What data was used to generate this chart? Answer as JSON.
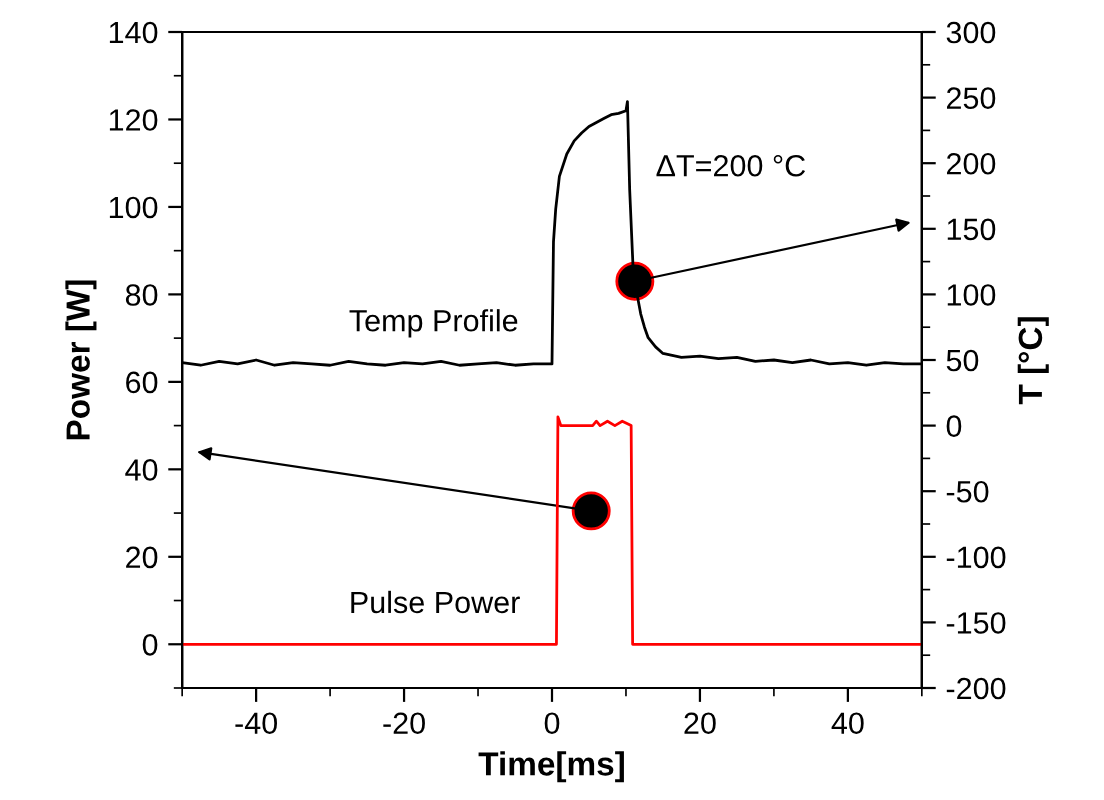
{
  "chart_data": {
    "type": "line",
    "xlabel": "Time[ms]",
    "ylabel": "Power [W]",
    "y2label": "T [°C]",
    "xlim": [
      -50,
      50
    ],
    "ylim": [
      -10,
      140
    ],
    "y2lim": [
      -200,
      300
    ],
    "xticks": [
      {
        "value": -50,
        "label": null
      },
      -40,
      {
        "value": -30,
        "label": null
      },
      -20,
      {
        "value": -10,
        "label": null
      },
      0,
      {
        "value": 10,
        "label": null
      },
      20,
      {
        "value": 30,
        "label": null
      },
      40,
      {
        "value": 50,
        "label": null
      }
    ],
    "yticks": [
      {
        "value": -10,
        "label": null
      },
      0,
      {
        "value": 10,
        "label": null
      },
      20,
      {
        "value": 30,
        "label": null
      },
      40,
      {
        "value": 50,
        "label": null
      },
      60,
      {
        "value": 70,
        "label": null
      },
      80,
      {
        "value": 90,
        "label": null
      },
      100,
      {
        "value": 110,
        "label": null
      },
      120,
      {
        "value": 130,
        "label": null
      },
      140
    ],
    "y2ticks": [
      -200,
      {
        "value": -175,
        "label": null
      },
      -150,
      {
        "value": -125,
        "label": null
      },
      -100,
      {
        "value": -75,
        "label": null
      },
      -50,
      {
        "value": -25,
        "label": null
      },
      0,
      {
        "value": 25,
        "label": null
      },
      50,
      {
        "value": 75,
        "label": null
      },
      100,
      {
        "value": 125,
        "label": null
      },
      150,
      {
        "value": 175,
        "label": null
      },
      200,
      {
        "value": 225,
        "label": null
      },
      250,
      {
        "value": 275,
        "label": null
      },
      300
    ],
    "annotations": [
      "ΔT=200 °C"
    ],
    "grid": false,
    "legend": false,
    "marker": "none",
    "line_style": "solid",
    "series": [
      {
        "name": "Temp Profile",
        "color": "#000000",
        "axis": "y2",
        "x": [
          -50,
          -47.5,
          -45,
          -42.5,
          -40,
          -37.5,
          -35,
          -32.5,
          -30,
          -27.5,
          -25,
          -22.5,
          -20,
          -17.5,
          -15,
          -12.5,
          -10,
          -7.5,
          -5,
          -2.5,
          0,
          0.2,
          0.5,
          1,
          2,
          3,
          4,
          5,
          6,
          7,
          8,
          9,
          10,
          10.2,
          10.5,
          11,
          11.5,
          12,
          12.5,
          13,
          14,
          15,
          17.5,
          20,
          22.5,
          25,
          27.5,
          30,
          32.5,
          35,
          37.5,
          40,
          42.5,
          45,
          47.5,
          50
        ],
        "values": [
          48,
          46,
          49,
          47,
          50,
          46,
          48,
          47,
          46,
          49,
          47,
          46,
          48,
          47,
          49,
          46,
          47,
          48,
          46,
          47,
          47,
          140,
          165,
          190,
          207,
          217,
          223,
          228,
          231,
          234,
          237,
          238,
          240,
          247,
          180,
          115,
          100,
          85,
          75,
          67,
          60,
          55,
          52,
          53,
          51,
          52,
          49,
          50,
          48,
          50,
          47,
          48,
          46,
          48,
          47,
          47
        ]
      },
      {
        "name": "Pulse Power",
        "color": "#ff0000",
        "x": [
          -50,
          0.6,
          0.8,
          1.2,
          5.5,
          6,
          6.5,
          7.5,
          8.5,
          9.5,
          10.7,
          10.9,
          50
        ],
        "values": [
          0,
          0,
          52,
          50,
          50,
          51,
          50,
          51,
          50,
          51,
          50,
          0,
          0
        ]
      }
    ]
  }
}
